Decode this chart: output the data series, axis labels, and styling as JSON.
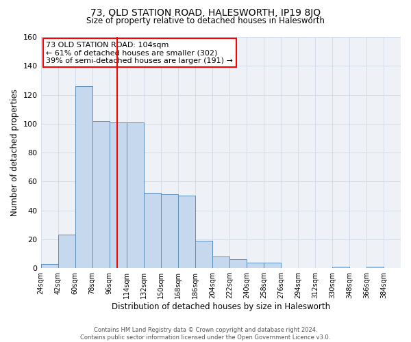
{
  "title": "73, OLD STATION ROAD, HALESWORTH, IP19 8JQ",
  "subtitle": "Size of property relative to detached houses in Halesworth",
  "xlabel": "Distribution of detached houses by size in Halesworth",
  "ylabel": "Number of detached properties",
  "bar_left_edges": [
    24,
    42,
    60,
    78,
    96,
    114,
    132,
    150,
    168,
    186,
    204,
    222,
    240,
    258,
    276,
    294,
    312,
    330,
    348,
    366
  ],
  "bar_heights": [
    3,
    23,
    126,
    102,
    101,
    101,
    52,
    51,
    50,
    19,
    8,
    6,
    4,
    4,
    0,
    0,
    0,
    1,
    0,
    1
  ],
  "bin_width": 18,
  "bar_color": "#c5d8ed",
  "bar_edge_color": "#5b8db8",
  "vline_x": 104,
  "vline_color": "red",
  "ylim": [
    0,
    160
  ],
  "yticks": [
    0,
    20,
    40,
    60,
    80,
    100,
    120,
    140,
    160
  ],
  "tick_labels": [
    "24sqm",
    "42sqm",
    "60sqm",
    "78sqm",
    "96sqm",
    "114sqm",
    "132sqm",
    "150sqm",
    "168sqm",
    "186sqm",
    "204sqm",
    "222sqm",
    "240sqm",
    "258sqm",
    "276sqm",
    "294sqm",
    "312sqm",
    "330sqm",
    "348sqm",
    "366sqm",
    "384sqm"
  ],
  "annotation_title": "73 OLD STATION ROAD: 104sqm",
  "annotation_line1": "← 61% of detached houses are smaller (302)",
  "annotation_line2": "39% of semi-detached houses are larger (191) →",
  "annotation_box_color": "white",
  "annotation_box_edge_color": "red",
  "footer_line1": "Contains HM Land Registry data © Crown copyright and database right 2024.",
  "footer_line2": "Contains public sector information licensed under the Open Government Licence v3.0.",
  "grid_color": "#d0d8e4",
  "background_color": "#eef2f7"
}
